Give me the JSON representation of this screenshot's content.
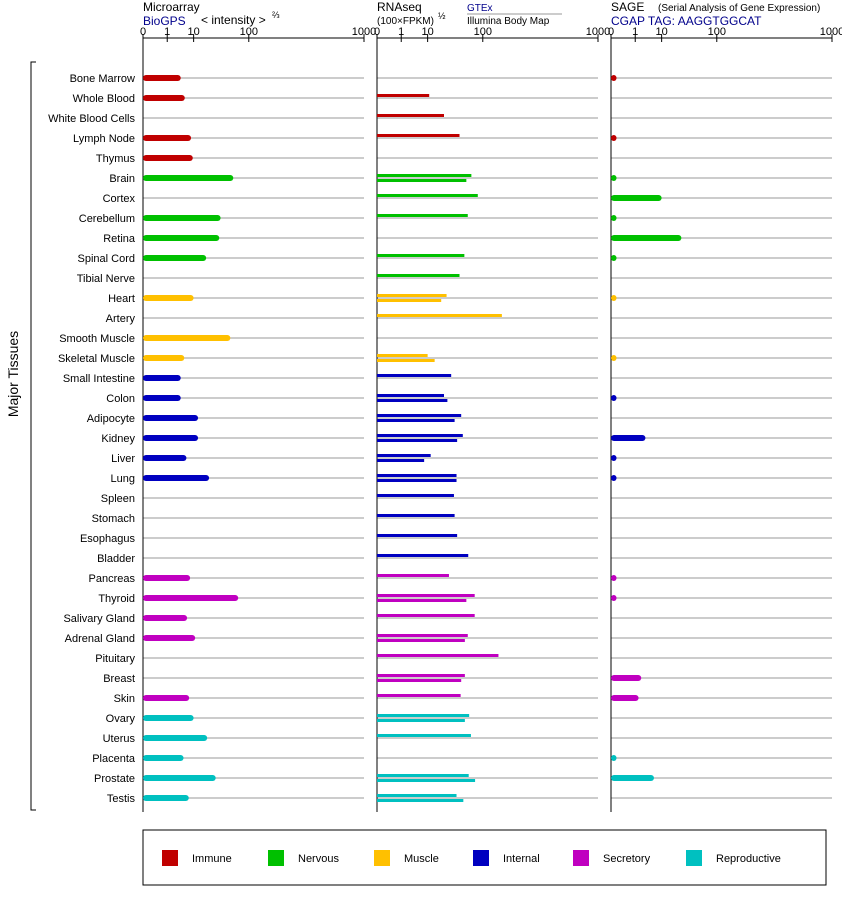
{
  "header": {
    "microarray_title": "Microarray",
    "microarray_source": "BioGPS",
    "microarray_scale": "< intensity >",
    "microarray_exp": "⅔",
    "rnaseq_title": "RNAseq",
    "rnaseq_scale": "(100×FPKM)",
    "rnaseq_exp": "½",
    "gtex_label": "GTEx",
    "illumina_label": "Illumina Body Map",
    "sage_title": "SAGE",
    "sage_subtitle": "(Serial Analysis of Gene Expression)",
    "sage_tag": "CGAP  TAG: AAGGTGGCAT"
  },
  "y_axis_label": "Major Tissues",
  "chart_data": {
    "type": "bar",
    "x_scale": "power",
    "panels": [
      {
        "name": "Microarray",
        "x_ticks": [
          "0",
          "1",
          "10",
          "100",
          "1000"
        ]
      },
      {
        "name": "RNAseq",
        "x_ticks": [
          "0",
          "1",
          "10",
          "100",
          "1000"
        ]
      },
      {
        "name": "SAGE",
        "x_ticks": [
          "0",
          "1",
          "10",
          "100",
          "1000"
        ]
      }
    ],
    "legend": {
      "placement": "bottom",
      "items": [
        {
          "name": "Immune",
          "color": "#c00000"
        },
        {
          "name": "Nervous",
          "color": "#00c000"
        },
        {
          "name": "Muscle",
          "color": "#ffc000"
        },
        {
          "name": "Internal",
          "color": "#0000c0"
        },
        {
          "name": "Secretory",
          "color": "#c000c0"
        },
        {
          "name": "Reproductive",
          "color": "#00c0c0"
        }
      ]
    },
    "tissues": [
      {
        "name": "Bone Marrow",
        "group": "Immune",
        "microarray": 4,
        "gtex": null,
        "illumina": null,
        "sage": 0.01
      },
      {
        "name": "Whole Blood",
        "group": "Immune",
        "microarray": 5.5,
        "gtex": 11,
        "illumina": null,
        "sage": null
      },
      {
        "name": "White Blood Cells",
        "group": "Immune",
        "microarray": null,
        "gtex": null,
        "illumina": 24,
        "sage": null
      },
      {
        "name": "Lymph Node",
        "group": "Immune",
        "microarray": 8.5,
        "gtex": null,
        "illumina": 46,
        "sage": 0.01
      },
      {
        "name": "Thymus",
        "group": "Immune",
        "microarray": 9.5,
        "gtex": null,
        "illumina": null,
        "sage": null
      },
      {
        "name": "Brain",
        "group": "Nervous",
        "microarray": 61,
        "gtex": 70,
        "illumina": 59,
        "sage": 0.01
      },
      {
        "name": "Cortex",
        "group": "Nervous",
        "microarray": null,
        "gtex": null,
        "illumina": 86,
        "sage": 10
      },
      {
        "name": "Cerebellum",
        "group": "Nervous",
        "microarray": 38,
        "gtex": null,
        "illumina": 62,
        "sage": 0.01
      },
      {
        "name": "Retina",
        "group": "Nervous",
        "microarray": 36,
        "gtex": null,
        "illumina": null,
        "sage": 28
      },
      {
        "name": "Spinal Cord",
        "group": "Nervous",
        "microarray": 20,
        "gtex": null,
        "illumina": 55,
        "sage": 0.01
      },
      {
        "name": "Tibial Nerve",
        "group": "Nervous",
        "microarray": null,
        "gtex": null,
        "illumina": 46,
        "sage": null
      },
      {
        "name": "Heart",
        "group": "Muscle",
        "microarray": 10,
        "gtex": 27,
        "illumina": 21,
        "sage": 0.01
      },
      {
        "name": "Artery",
        "group": "Muscle",
        "microarray": null,
        "gtex": null,
        "illumina": 168,
        "sage": null
      },
      {
        "name": "Smooth Muscle",
        "group": "Muscle",
        "microarray": 55,
        "gtex": null,
        "illumina": null,
        "sage": null
      },
      {
        "name": "Skeletal Muscle",
        "group": "Muscle",
        "microarray": 5.3,
        "gtex": 10,
        "illumina": 15,
        "sage": 0.01
      },
      {
        "name": "Small Intestine",
        "group": "Internal",
        "microarray": 4,
        "gtex": null,
        "illumina": 33,
        "sage": null
      },
      {
        "name": "Colon",
        "group": "Internal",
        "microarray": 4,
        "gtex": 24,
        "illumina": 28,
        "sage": 0.01
      },
      {
        "name": "Adipocyte",
        "group": "Internal",
        "microarray": 13,
        "gtex": 49,
        "illumina": 38,
        "sage": null
      },
      {
        "name": "Kidney",
        "group": "Internal",
        "microarray": 13,
        "gtex": 52,
        "illumina": 42,
        "sage": 3
      },
      {
        "name": "Liver",
        "group": "Internal",
        "microarray": 6.2,
        "gtex": 12,
        "illumina": 8,
        "sage": 0.01
      },
      {
        "name": "Lung",
        "group": "Internal",
        "microarray": 23,
        "gtex": 41,
        "illumina": 41,
        "sage": 0.01
      },
      {
        "name": "Spleen",
        "group": "Internal",
        "microarray": null,
        "gtex": null,
        "illumina": 37,
        "sage": null
      },
      {
        "name": "Stomach",
        "group": "Internal",
        "microarray": null,
        "gtex": null,
        "illumina": 38,
        "sage": null
      },
      {
        "name": "Esophagus",
        "group": "Internal",
        "microarray": null,
        "gtex": null,
        "illumina": 42,
        "sage": null
      },
      {
        "name": "Bladder",
        "group": "Internal",
        "microarray": null,
        "gtex": null,
        "illumina": 63,
        "sage": null
      },
      {
        "name": "Pancreas",
        "group": "Secretory",
        "microarray": 8,
        "gtex": null,
        "illumina": 30,
        "sage": 0.01
      },
      {
        "name": "Thyroid",
        "group": "Secretory",
        "microarray": 72,
        "gtex": 78,
        "illumina": 59,
        "sage": 0.01
      },
      {
        "name": "Salivary Gland",
        "group": "Secretory",
        "microarray": 6.5,
        "gtex": null,
        "illumina": 78,
        "sage": null
      },
      {
        "name": "Adrenal Gland",
        "group": "Secretory",
        "microarray": 11,
        "gtex": 62,
        "illumina": 56,
        "sage": null
      },
      {
        "name": "Pituitary",
        "group": "Secretory",
        "microarray": null,
        "gtex": null,
        "illumina": 154,
        "sage": null
      },
      {
        "name": "Breast",
        "group": "Secretory",
        "microarray": null,
        "gtex": 56,
        "illumina": 49,
        "sage": 2
      },
      {
        "name": "Skin",
        "group": "Secretory",
        "microarray": 7.5,
        "gtex": null,
        "illumina": 48,
        "sage": 1.5
      },
      {
        "name": "Ovary",
        "group": "Reproductive",
        "microarray": 10,
        "gtex": 65,
        "illumina": 56,
        "sage": null
      },
      {
        "name": "Uterus",
        "group": "Reproductive",
        "microarray": 21,
        "gtex": null,
        "illumina": 69,
        "sage": null
      },
      {
        "name": "Placenta",
        "group": "Reproductive",
        "microarray": 5,
        "gtex": null,
        "illumina": null,
        "sage": 0.01
      },
      {
        "name": "Prostate",
        "group": "Reproductive",
        "microarray": 31,
        "gtex": 64,
        "illumina": 79,
        "sage": 6
      },
      {
        "name": "Testis",
        "group": "Reproductive",
        "microarray": 7.3,
        "gtex": 41,
        "illumina": 53,
        "sage": null
      }
    ]
  }
}
